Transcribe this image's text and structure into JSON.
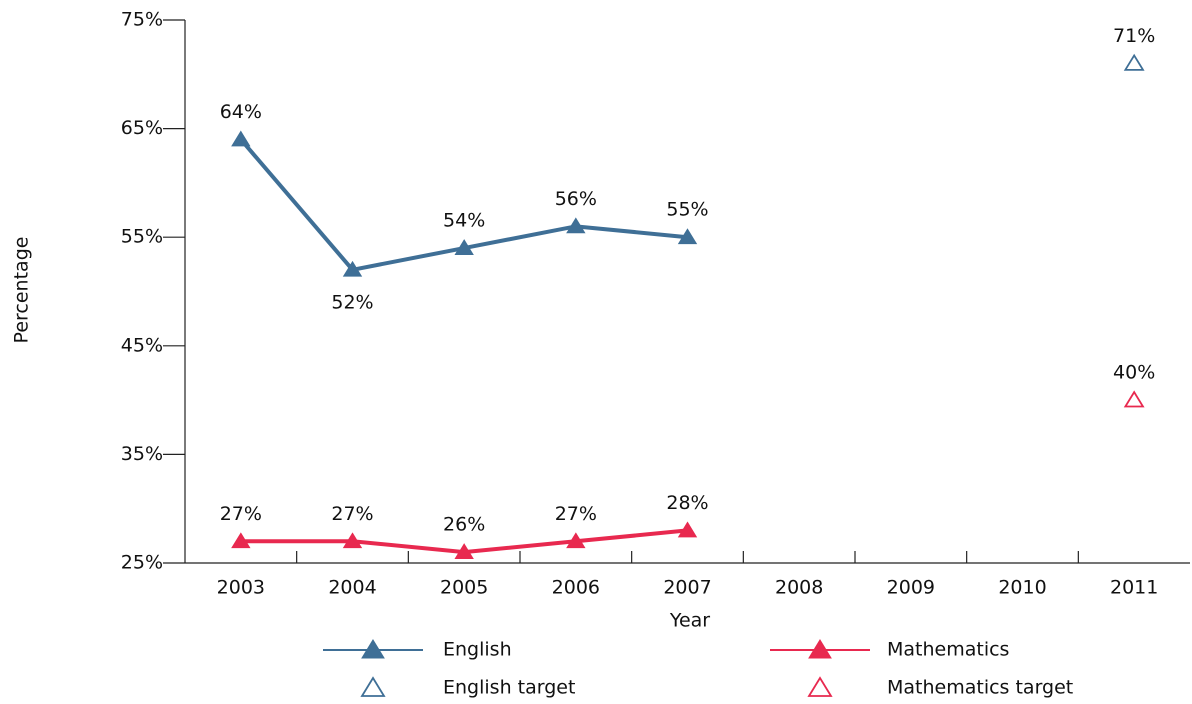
{
  "chart_data": {
    "type": "line",
    "x_label": "Year",
    "y_label": "Percentage",
    "categories": [
      "2003",
      "2004",
      "2005",
      "2006",
      "2007",
      "2008",
      "2009",
      "2010",
      "2011"
    ],
    "ylim": [
      25,
      75
    ],
    "yticks": [
      {
        "value": 25,
        "label": "25%"
      },
      {
        "value": 35,
        "label": "35%"
      },
      {
        "value": 45,
        "label": "45%"
      },
      {
        "value": 55,
        "label": "55%"
      },
      {
        "value": 65,
        "label": "65%"
      },
      {
        "value": 75,
        "label": "75%"
      }
    ],
    "series": [
      {
        "name": "English",
        "color": "#3f6f96",
        "marker": "filled",
        "line": true,
        "values": [
          64,
          52,
          54,
          56,
          55,
          null,
          null,
          null,
          null
        ],
        "value_labels": [
          "64%",
          "52%",
          "54%",
          "56%",
          "55%",
          null,
          null,
          null,
          null
        ]
      },
      {
        "name": "Mathematics",
        "color": "#e8294f",
        "marker": "filled",
        "line": true,
        "values": [
          27,
          27,
          26,
          27,
          28,
          null,
          null,
          null,
          null
        ],
        "value_labels": [
          "27%",
          "27%",
          "26%",
          "27%",
          "28%",
          null,
          null,
          null,
          null
        ]
      },
      {
        "name": "English target",
        "color": "#3f6f96",
        "marker": "open",
        "line": false,
        "values": [
          null,
          null,
          null,
          null,
          null,
          null,
          null,
          null,
          71
        ],
        "value_labels": [
          null,
          null,
          null,
          null,
          null,
          null,
          null,
          null,
          "71%"
        ]
      },
      {
        "name": "Mathematics target",
        "color": "#e8294f",
        "marker": "open",
        "line": false,
        "values": [
          null,
          null,
          null,
          null,
          null,
          null,
          null,
          null,
          40
        ],
        "value_labels": [
          null,
          null,
          null,
          null,
          null,
          null,
          null,
          null,
          "40%"
        ]
      }
    ]
  }
}
